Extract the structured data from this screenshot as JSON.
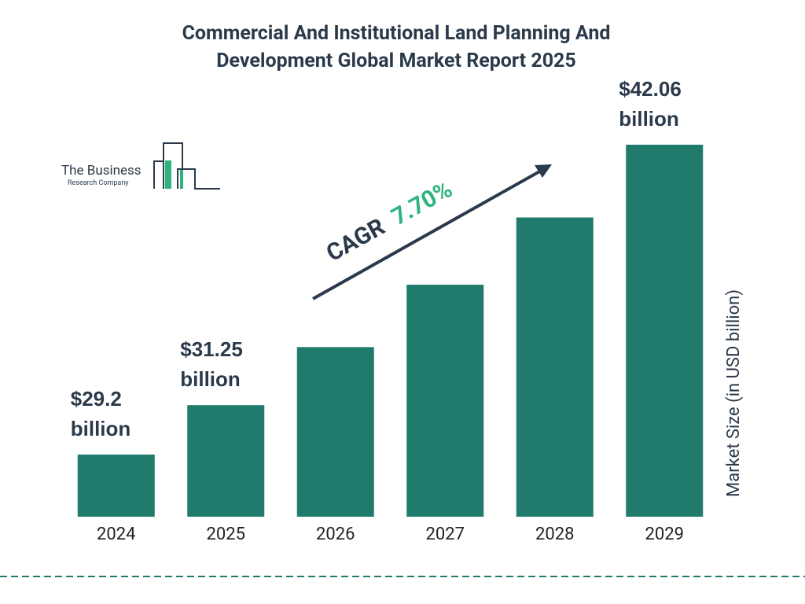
{
  "chart_data": {
    "type": "bar",
    "title": "Commercial And Institutional Land Planning And Development Global Market Report 2025",
    "categories": [
      "2024",
      "2025",
      "2026",
      "2027",
      "2028",
      "2029"
    ],
    "values": [
      29.2,
      31.25,
      33.66,
      36.25,
      39.04,
      42.06
    ],
    "value_labels": [
      "$29.2 billion",
      "$31.25 billion",
      null,
      null,
      null,
      "$42.06 billion"
    ],
    "color": "#207b6c",
    "ylim": [
      26.62,
      42.06
    ],
    "y_axis_label": "Market Size (in USD billion)",
    "annotation": {
      "label": "CAGR",
      "value": "7.70%",
      "value_color": "#2db37e"
    },
    "logo": {
      "line1": "The Business",
      "line2": "Research Company"
    }
  }
}
